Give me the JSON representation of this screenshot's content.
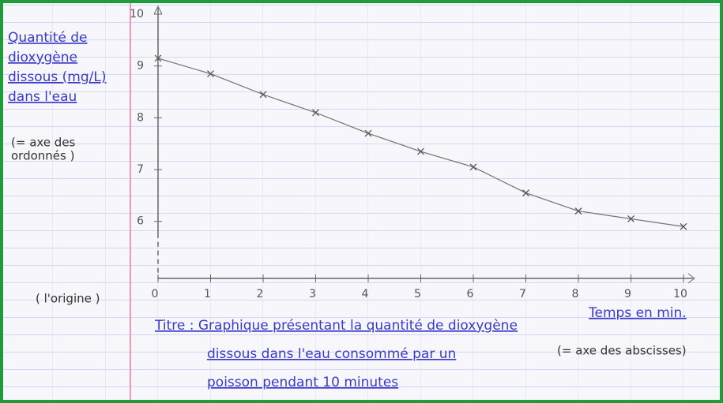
{
  "chart_data": {
    "type": "line",
    "y_label": [
      "Quantité de",
      "dioxygène",
      "dissous (mg/L)",
      "dans l'eau"
    ],
    "y_note": [
      "(= axe des",
      "ordonnés )"
    ],
    "x_label": "Temps en min.",
    "x_note": "(= axe des abscisses)",
    "origin_note": "( l'origine )",
    "title": [
      "Titre : Graphique présentant la quantité de dioxygène",
      "dissous dans l'eau consommé par un",
      "poisson pendant 10 minutes"
    ],
    "x": [
      0,
      1,
      2,
      3,
      4,
      5,
      6,
      7,
      8,
      9,
      10
    ],
    "values": [
      9.15,
      8.85,
      8.45,
      8.1,
      7.7,
      7.35,
      7.05,
      6.55,
      6.2,
      6.05,
      5.9
    ],
    "color": "#7a7a7a",
    "xlim": [
      0,
      10
    ],
    "xticks": [
      0,
      1,
      2,
      3,
      4,
      5,
      6,
      7,
      8,
      9,
      10
    ],
    "ylim": [
      4.9,
      10
    ],
    "yticks": [
      6,
      7,
      8,
      9,
      10
    ]
  }
}
